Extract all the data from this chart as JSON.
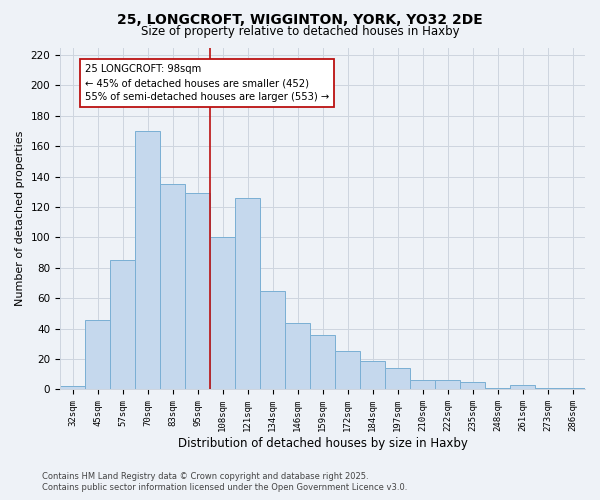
{
  "title": "25, LONGCROFT, WIGGINTON, YORK, YO32 2DE",
  "subtitle": "Size of property relative to detached houses in Haxby",
  "xlabel": "Distribution of detached houses by size in Haxby",
  "ylabel": "Number of detached properties",
  "categories": [
    "32sqm",
    "45sqm",
    "57sqm",
    "70sqm",
    "83sqm",
    "95sqm",
    "108sqm",
    "121sqm",
    "134sqm",
    "146sqm",
    "159sqm",
    "172sqm",
    "184sqm",
    "197sqm",
    "210sqm",
    "222sqm",
    "235sqm",
    "248sqm",
    "261sqm",
    "273sqm",
    "286sqm"
  ],
  "values": [
    2,
    46,
    85,
    170,
    135,
    129,
    100,
    126,
    65,
    44,
    36,
    25,
    19,
    14,
    6,
    6,
    5,
    1,
    3,
    1,
    1
  ],
  "bar_color": "#c5d8ed",
  "bar_edge_color": "#7aafd4",
  "background_color": "#eef2f7",
  "grid_color": "#cdd5df",
  "vline_x": 5.5,
  "vline_color": "#bb1111",
  "annotation_text": "25 LONGCROFT: 98sqm\n← 45% of detached houses are smaller (452)\n55% of semi-detached houses are larger (553) →",
  "ylim": [
    0,
    225
  ],
  "yticks": [
    0,
    20,
    40,
    60,
    80,
    100,
    120,
    140,
    160,
    180,
    200,
    220
  ],
  "footer_line1": "Contains HM Land Registry data © Crown copyright and database right 2025.",
  "footer_line2": "Contains public sector information licensed under the Open Government Licence v3.0."
}
